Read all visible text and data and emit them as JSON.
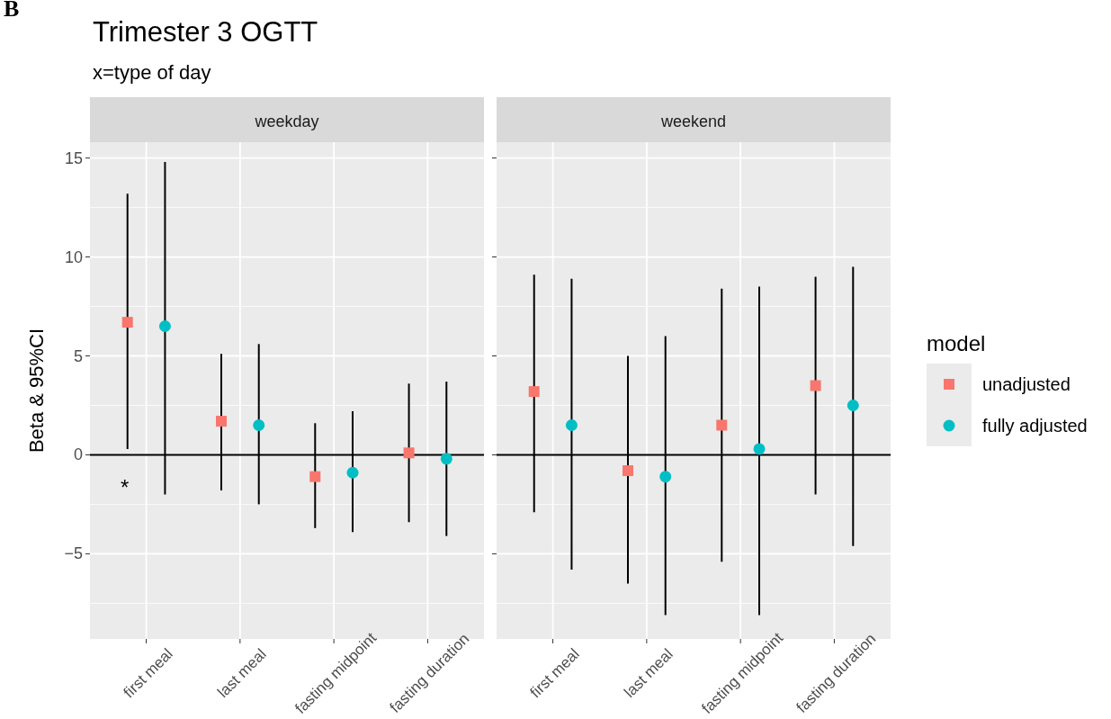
{
  "chart_data": [
    {
      "type": "scatter",
      "title": "weekday",
      "ylabel": "Beta & 95%CI",
      "annotations": [
        "B",
        "Trimester 3 OGTT",
        "x=type of day",
        "*"
      ],
      "categories": [
        "first meal",
        "last meal",
        "fasting midpoint",
        "fasting duration"
      ],
      "series": [
        {
          "color": "#f8766d",
          "marker": "square",
          "values": [
            6.7,
            1.7,
            -1.1,
            0.1
          ],
          "errors": [
            [
              0.3,
              13.2
            ],
            [
              -1.8,
              5.1
            ],
            [
              -3.7,
              1.6
            ],
            [
              -3.4,
              3.6
            ]
          ]
        },
        {
          "color": "#00bfc4",
          "marker": "circle",
          "values": [
            6.5,
            1.5,
            -0.9,
            -0.2
          ],
          "errors": [
            [
              -2.0,
              14.8
            ],
            [
              -2.5,
              5.6
            ],
            [
              -3.9,
              2.2
            ],
            [
              -4.1,
              3.7
            ]
          ]
        }
      ],
      "ylim": [
        -9.3,
        15.8
      ],
      "yticks": [
        15,
        10,
        5,
        0,
        -5
      ],
      "grid": true,
      "ref_lines": [
        {
          "axis": "y",
          "value": 0,
          "color": "#000000"
        }
      ]
    },
    {
      "type": "scatter",
      "title": "weekend",
      "legend_title": "model",
      "categories": [
        "first meal",
        "last meal",
        "fasting midpoint",
        "fasting duration"
      ],
      "series": [
        {
          "name": "unadjusted",
          "color": "#f8766d",
          "marker": "square",
          "values": [
            3.2,
            -0.8,
            1.5,
            3.5
          ],
          "errors": [
            [
              -2.9,
              9.1
            ],
            [
              -6.5,
              5.0
            ],
            [
              -5.4,
              8.4
            ],
            [
              -2.0,
              9.0
            ]
          ]
        },
        {
          "name": "fully adjusted",
          "color": "#00bfc4",
          "marker": "circle",
          "values": [
            1.5,
            -1.1,
            0.3,
            2.5
          ],
          "errors": [
            [
              -5.8,
              8.9
            ],
            [
              -8.1,
              6.0
            ],
            [
              -8.1,
              8.5
            ],
            [
              -4.6,
              9.5
            ]
          ]
        }
      ],
      "ylim": [
        -9.3,
        15.8
      ],
      "yticks": [
        15,
        10,
        5,
        0,
        -5
      ],
      "grid": true,
      "legend": "right",
      "tick_labels": "x",
      "ref_lines": [
        {
          "axis": "y",
          "value": 0,
          "color": "#000000"
        }
      ]
    }
  ]
}
